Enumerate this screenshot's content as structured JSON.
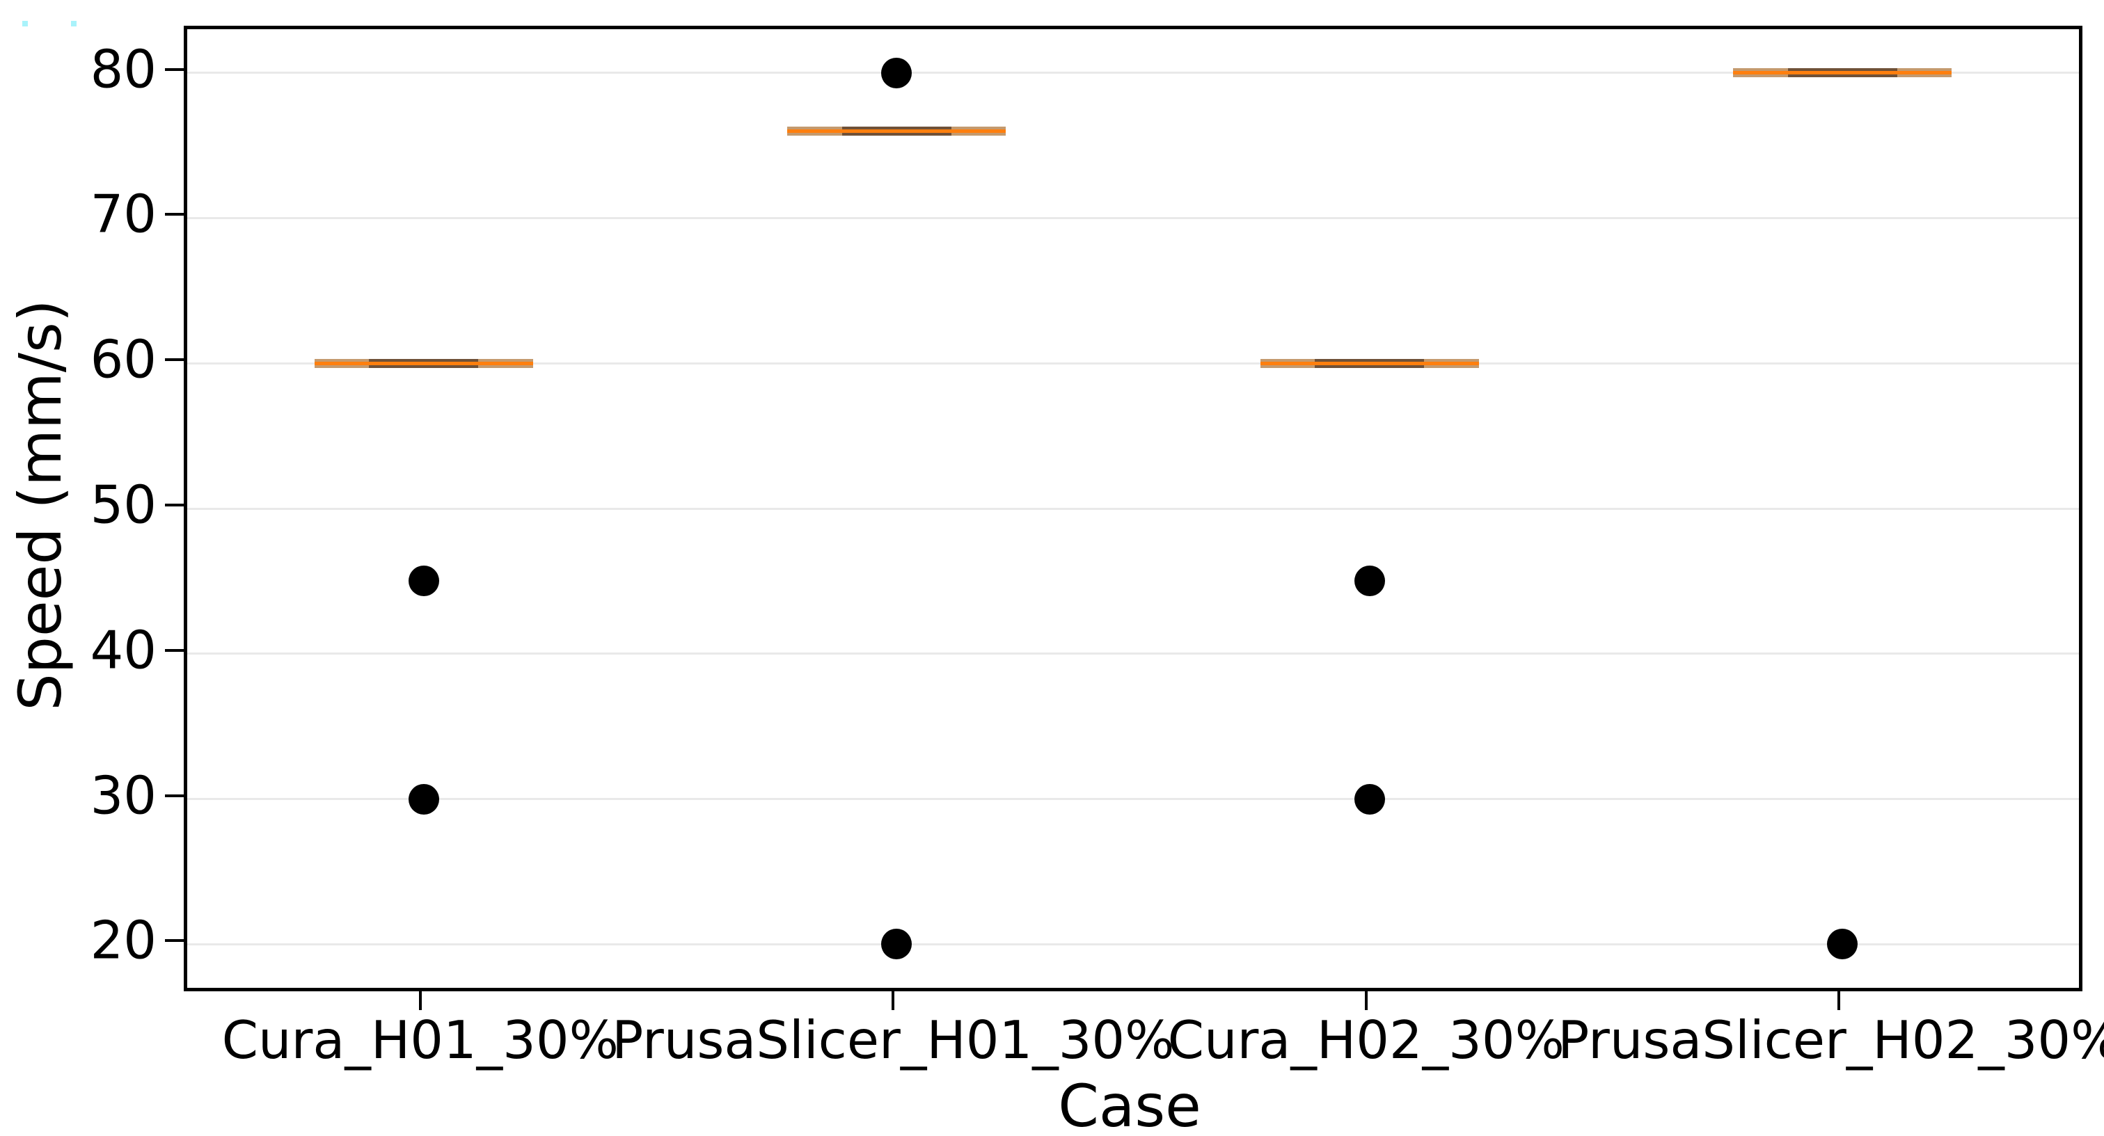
{
  "chart_data": {
    "type": "box",
    "title": "",
    "xlabel": "Case",
    "ylabel": "Speed (mm/s)",
    "categories": [
      "Cura_H01_30%",
      "PrusaSlicer_H01_30%",
      "Cura_H02_30%",
      "PrusaSlicer_H02_30%"
    ],
    "yticks": [
      20,
      30,
      40,
      50,
      60,
      70,
      80
    ],
    "ylim": [
      17,
      83
    ],
    "grid": "horizontal-light",
    "legend_position": "none",
    "boxes": [
      {
        "category": "Cura_H01_30%",
        "q1": 60,
        "median": 60,
        "q3": 60,
        "whisker_low": 60,
        "whisker_high": 60,
        "fliers": [
          45,
          30
        ]
      },
      {
        "category": "PrusaSlicer_H01_30%",
        "q1": 76,
        "median": 76,
        "q3": 76,
        "whisker_low": 76,
        "whisker_high": 76,
        "fliers": [
          80,
          20
        ]
      },
      {
        "category": "Cura_H02_30%",
        "q1": 60,
        "median": 60,
        "q3": 60,
        "whisker_low": 60,
        "whisker_high": 60,
        "fliers": [
          45,
          30
        ]
      },
      {
        "category": "PrusaSlicer_H02_30%",
        "q1": 80,
        "median": 80,
        "q3": 80,
        "whisker_low": 80,
        "whisker_high": 80,
        "fliers": [
          20
        ]
      }
    ],
    "colors": {
      "median_line": "#ff7f0e",
      "box_band": "#c49a6e",
      "cap_segment": "#6f5138",
      "flier": "#000000",
      "gridline": "#e9e9e9",
      "axis_frame": "#000000",
      "text": "#000000"
    }
  }
}
